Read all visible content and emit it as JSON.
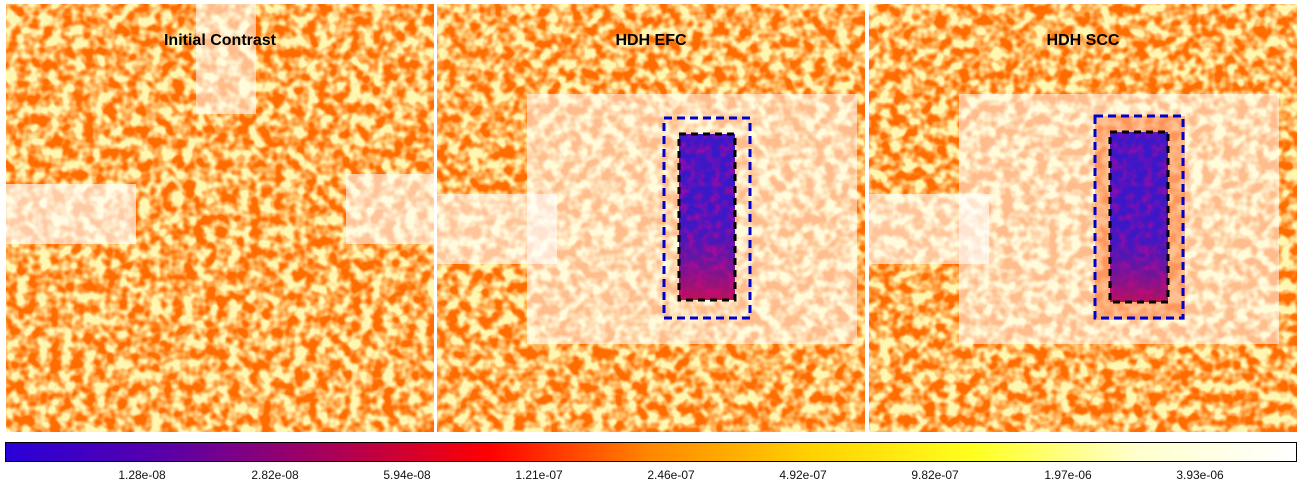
{
  "panels": [
    {
      "title": "Initial Contrast",
      "has_dark_hole": false
    },
    {
      "title": "HDH EFC",
      "has_dark_hole": true
    },
    {
      "title": "HDH SCC",
      "has_dark_hole": true
    }
  ],
  "colorbar": {
    "stops": [
      "#2a00d8",
      "#5a00a8",
      "#a8005a",
      "#ff0000",
      "#ff8800",
      "#ffd200",
      "#ffff20",
      "#ffffcc",
      "#ffffff"
    ],
    "ticks": [
      "1.28e-08",
      "2.82e-08",
      "5.94e-08",
      "1.21e-07",
      "2.46e-07",
      "4.92e-07",
      "9.82e-07",
      "1.97e-06",
      "3.93e-06"
    ]
  },
  "colors": {
    "dark_hole_box": "#0000cc",
    "dark_hole_inner": "#000000",
    "dark_hole_fill": "#3a18c8"
  }
}
